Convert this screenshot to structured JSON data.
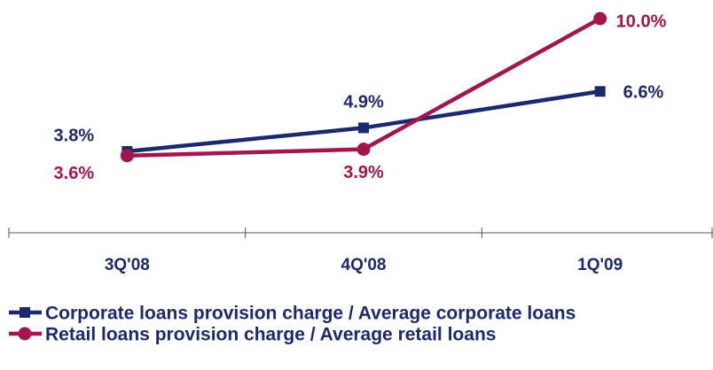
{
  "chart_data": {
    "type": "line",
    "categories": [
      "3Q'08",
      "4Q'08",
      "1Q'09"
    ],
    "series": [
      {
        "name": "Corporate loans provision charge / Average corporate loans",
        "color": "#1b2a6e",
        "marker": "square",
        "values": [
          3.8,
          4.9,
          6.6
        ],
        "value_labels": [
          "3.8%",
          "4.9%",
          "6.6%"
        ]
      },
      {
        "name": "Retail loans provision charge / Average retail loans",
        "color": "#a3154f",
        "marker": "circle",
        "values": [
          3.6,
          3.9,
          10.0
        ],
        "value_labels": [
          "3.6%",
          "3.9%",
          "10.0%"
        ]
      }
    ],
    "ylim": [
      0,
      10
    ],
    "legend": "bottom"
  }
}
